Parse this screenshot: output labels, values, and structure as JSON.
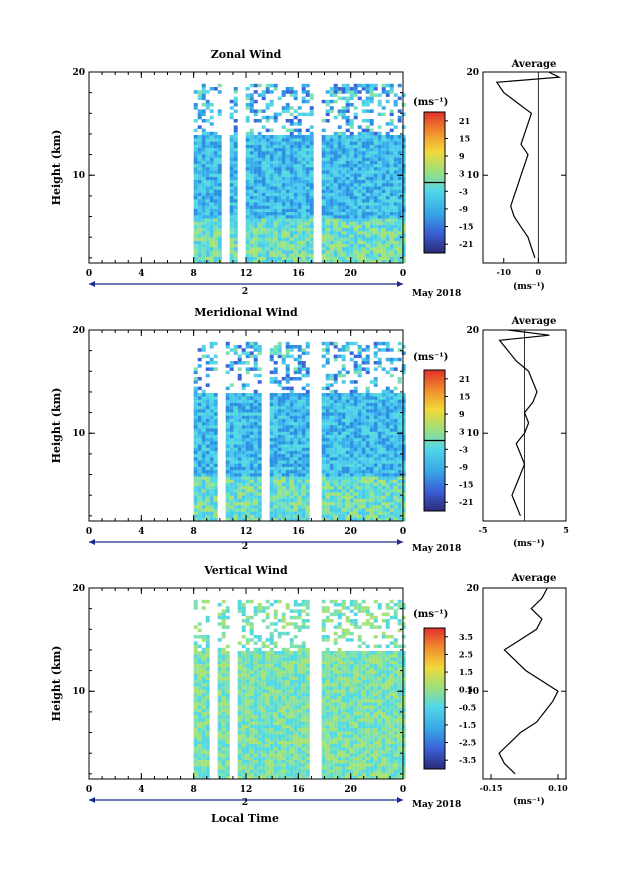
{
  "figure": {
    "x_axis_title": "Local Time",
    "date_label": "May 2018",
    "day_label": "2",
    "unit_label": "(ms⁻¹)",
    "avg_title": "Average"
  },
  "chart_data": [
    {
      "type": "heatmap",
      "title": "Zonal Wind",
      "ylabel": "Height (km)",
      "xlabel": "",
      "x_ticks": [
        "0",
        "4",
        "8",
        "12",
        "16",
        "20",
        "0"
      ],
      "x_ticks_values": [
        0,
        4,
        8,
        12,
        16,
        20,
        24
      ],
      "xlim": [
        0,
        24
      ],
      "y_ticks": [
        "20",
        "10"
      ],
      "ylim": [
        1.5,
        20
      ],
      "data_x_range": [
        8,
        24
      ],
      "colorbar": {
        "ticks": [
          "21",
          "15",
          "9",
          "3",
          "-3",
          "-9",
          "-15",
          "-21"
        ],
        "range": [
          -24,
          24
        ],
        "marker": 0
      },
      "average_profile": {
        "x_ticks": [
          "-10",
          "0"
        ],
        "xlim": [
          -16,
          8
        ],
        "zero_line": 0,
        "ylim": [
          1.5,
          20
        ],
        "heights": [
          2,
          3,
          4,
          5,
          6,
          7,
          8,
          9,
          10,
          11,
          12,
          13,
          14,
          15,
          16,
          17,
          18,
          19,
          19.5,
          20
        ],
        "values": [
          -1,
          -2,
          -3,
          -5,
          -7,
          -8,
          -7,
          -6,
          -5,
          -4,
          -3,
          -5,
          -4,
          -3,
          -2,
          -6,
          -10,
          -12,
          6,
          3
        ]
      }
    },
    {
      "type": "heatmap",
      "title": "Meridional Wind",
      "ylabel": "Height (km)",
      "xlabel": "",
      "x_ticks": [
        "0",
        "4",
        "8",
        "12",
        "16",
        "20",
        "0"
      ],
      "x_ticks_values": [
        0,
        4,
        8,
        12,
        16,
        20,
        24
      ],
      "xlim": [
        0,
        24
      ],
      "y_ticks": [
        "20",
        "10"
      ],
      "ylim": [
        1.5,
        20
      ],
      "data_x_range": [
        8,
        24
      ],
      "colorbar": {
        "ticks": [
          "21",
          "15",
          "9",
          "3",
          "-3",
          "-9",
          "-15",
          "-21"
        ],
        "range": [
          -24,
          24
        ],
        "marker": 0
      },
      "average_profile": {
        "x_ticks": [
          "-5",
          "5"
        ],
        "xlim": [
          -5,
          5
        ],
        "zero_line": 0,
        "ylim": [
          1.5,
          20
        ],
        "heights": [
          2,
          3,
          4,
          5,
          6,
          7,
          8,
          9,
          10,
          11,
          12,
          13,
          14,
          15,
          16,
          17,
          18,
          19,
          19.5,
          20
        ],
        "values": [
          -0.5,
          -1,
          -1.5,
          -1,
          -0.5,
          0,
          -0.5,
          -1,
          0,
          0.5,
          0,
          1,
          1.5,
          1,
          0.5,
          -1,
          -2,
          -3,
          3,
          -2
        ]
      }
    },
    {
      "type": "heatmap",
      "title": "Vertical Wind",
      "ylabel": "Height (km)",
      "xlabel": "Local Time",
      "x_ticks": [
        "0",
        "4",
        "8",
        "12",
        "16",
        "20",
        "0"
      ],
      "x_ticks_values": [
        0,
        4,
        8,
        12,
        16,
        20,
        24
      ],
      "xlim": [
        0,
        24
      ],
      "y_ticks": [
        "20",
        "10"
      ],
      "ylim": [
        1.5,
        20
      ],
      "data_x_range": [
        8,
        24
      ],
      "colorbar": {
        "ticks": [
          "3.5",
          "2.5",
          "1.5",
          "0.5",
          "-0.5",
          "-1.5",
          "-2.5",
          "-3.5"
        ],
        "range": [
          -4,
          4
        ],
        "marker": null
      },
      "average_profile": {
        "x_ticks": [
          "-0.15",
          "0.10"
        ],
        "xlim": [
          -0.18,
          0.13
        ],
        "zero_line": null,
        "ylim": [
          1.5,
          20
        ],
        "heights": [
          2,
          3,
          4,
          5,
          6,
          7,
          8,
          9,
          10,
          11,
          12,
          13,
          14,
          15,
          16,
          17,
          18,
          19,
          20
        ],
        "values": [
          -0.06,
          -0.1,
          -0.12,
          -0.08,
          -0.04,
          0.02,
          0.05,
          0.08,
          0.1,
          0.04,
          -0.02,
          -0.06,
          -0.1,
          -0.04,
          0.02,
          0.04,
          0.0,
          0.04,
          0.06
        ]
      }
    }
  ]
}
